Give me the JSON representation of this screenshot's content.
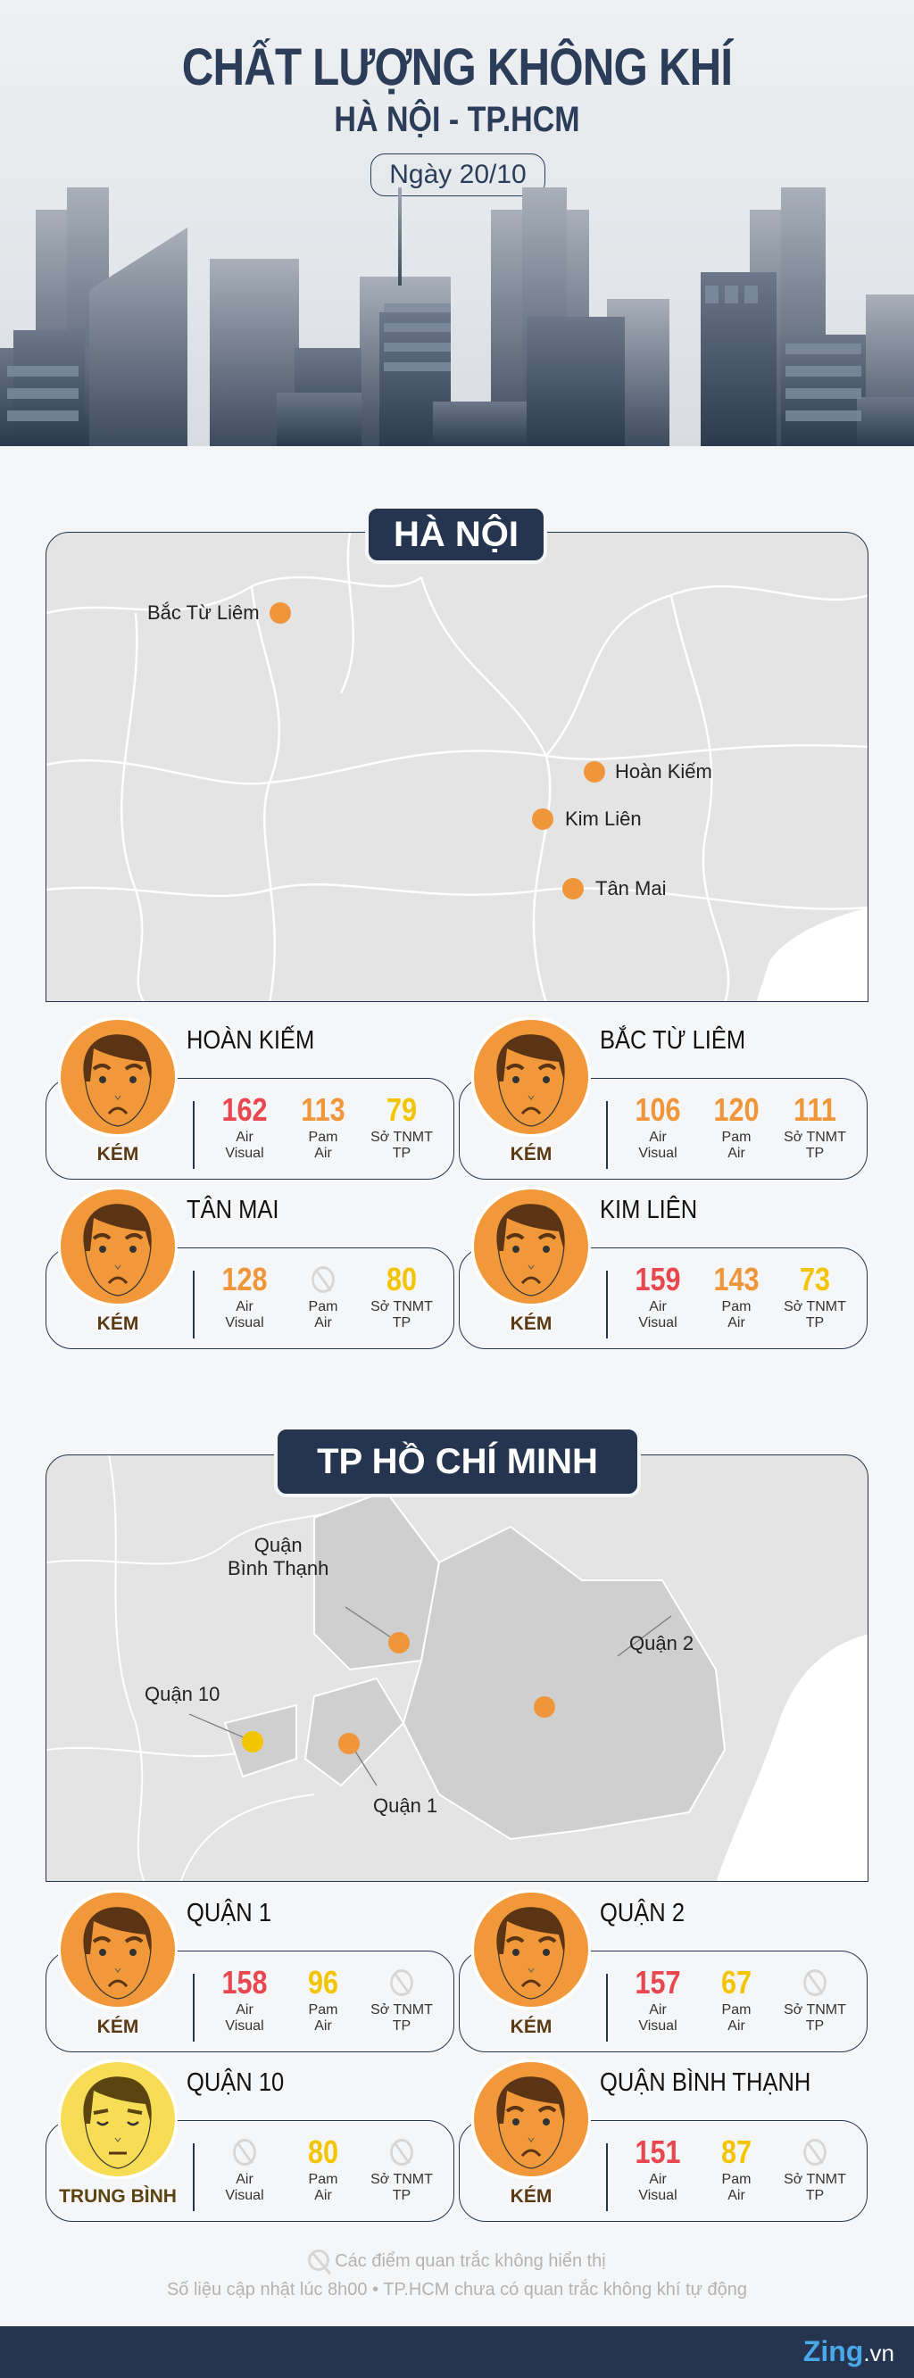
{
  "header": {
    "title": "CHẤT LƯỢNG KHÔNG KHÍ",
    "subtitle": "HÀ NỘI - TP.HCM",
    "date": "Ngày 20/10"
  },
  "colors": {
    "bad": "#e8474f",
    "poor": "#f0963a",
    "moderate": "#f2c500",
    "navy": "#25354f",
    "face_orange": "#f0983a",
    "face_yellow": "#f7dd55"
  },
  "hanoi": {
    "title": "HÀ NỘI",
    "markers": [
      {
        "label": "Bắc Từ Liêm"
      },
      {
        "label": "Hoàn Kiếm"
      },
      {
        "label": "Kim Liên"
      },
      {
        "label": "Tân Mai"
      }
    ],
    "cards": [
      {
        "name": "HOÀN KIẾM",
        "status": "KÉM",
        "face": "sad",
        "metrics": [
          {
            "value": "162",
            "level": "bad"
          },
          {
            "value": "113",
            "level": "poor"
          },
          {
            "value": "79",
            "level": "moderate"
          }
        ]
      },
      {
        "name": "BẮC TỪ LIÊM",
        "status": "KÉM",
        "face": "sad",
        "metrics": [
          {
            "value": "106",
            "level": "poor"
          },
          {
            "value": "120",
            "level": "poor"
          },
          {
            "value": "111",
            "level": "poor"
          }
        ]
      },
      {
        "name": "TÂN MAI",
        "status": "KÉM",
        "face": "sad",
        "metrics": [
          {
            "value": "128",
            "level": "poor"
          },
          {
            "value": null,
            "level": "none"
          },
          {
            "value": "80",
            "level": "moderate"
          }
        ]
      },
      {
        "name": "KIM LIÊN",
        "status": "KÉM",
        "face": "sad",
        "metrics": [
          {
            "value": "159",
            "level": "bad"
          },
          {
            "value": "143",
            "level": "poor"
          },
          {
            "value": "73",
            "level": "moderate"
          }
        ]
      }
    ]
  },
  "hcm": {
    "title": "TP HỒ CHÍ MINH",
    "markers": [
      {
        "label": "Quận\nBình Thạnh"
      },
      {
        "label": "Quận 2"
      },
      {
        "label": "Quận 10"
      },
      {
        "label": "Quận 1"
      }
    ],
    "cards": [
      {
        "name": "QUẬN 1",
        "status": "KÉM",
        "face": "sad",
        "metrics": [
          {
            "value": "158",
            "level": "bad"
          },
          {
            "value": "96",
            "level": "moderate"
          },
          {
            "value": null,
            "level": "none"
          }
        ]
      },
      {
        "name": "QUẬN 2",
        "status": "KÉM",
        "face": "sad",
        "metrics": [
          {
            "value": "157",
            "level": "bad"
          },
          {
            "value": "67",
            "level": "moderate"
          },
          {
            "value": null,
            "level": "none"
          }
        ]
      },
      {
        "name": "QUẬN 10",
        "status": "TRUNG BÌNH",
        "face": "neutral",
        "metrics": [
          {
            "value": null,
            "level": "none"
          },
          {
            "value": "80",
            "level": "moderate"
          },
          {
            "value": null,
            "level": "none"
          }
        ]
      },
      {
        "name": "QUẬN BÌNH THẠNH",
        "status": "KÉM",
        "face": "sad",
        "metrics": [
          {
            "value": "151",
            "level": "bad"
          },
          {
            "value": "87",
            "level": "moderate"
          },
          {
            "value": null,
            "level": "none"
          }
        ]
      }
    ]
  },
  "sources": [
    {
      "line1": "Air",
      "line2": "Visual"
    },
    {
      "line1": "Pam",
      "line2": "Air"
    },
    {
      "line1": "Sở TNMT",
      "line2": "TP"
    }
  ],
  "notes": {
    "legend": "Các điểm quan trắc không hiển thị",
    "footnote": "Số liệu cập nhật lúc 8h00 • TP.HCM chưa có quan trắc không khí tự động"
  },
  "footer": {
    "logo_main": "Zing",
    "logo_suffix": ".vn"
  }
}
